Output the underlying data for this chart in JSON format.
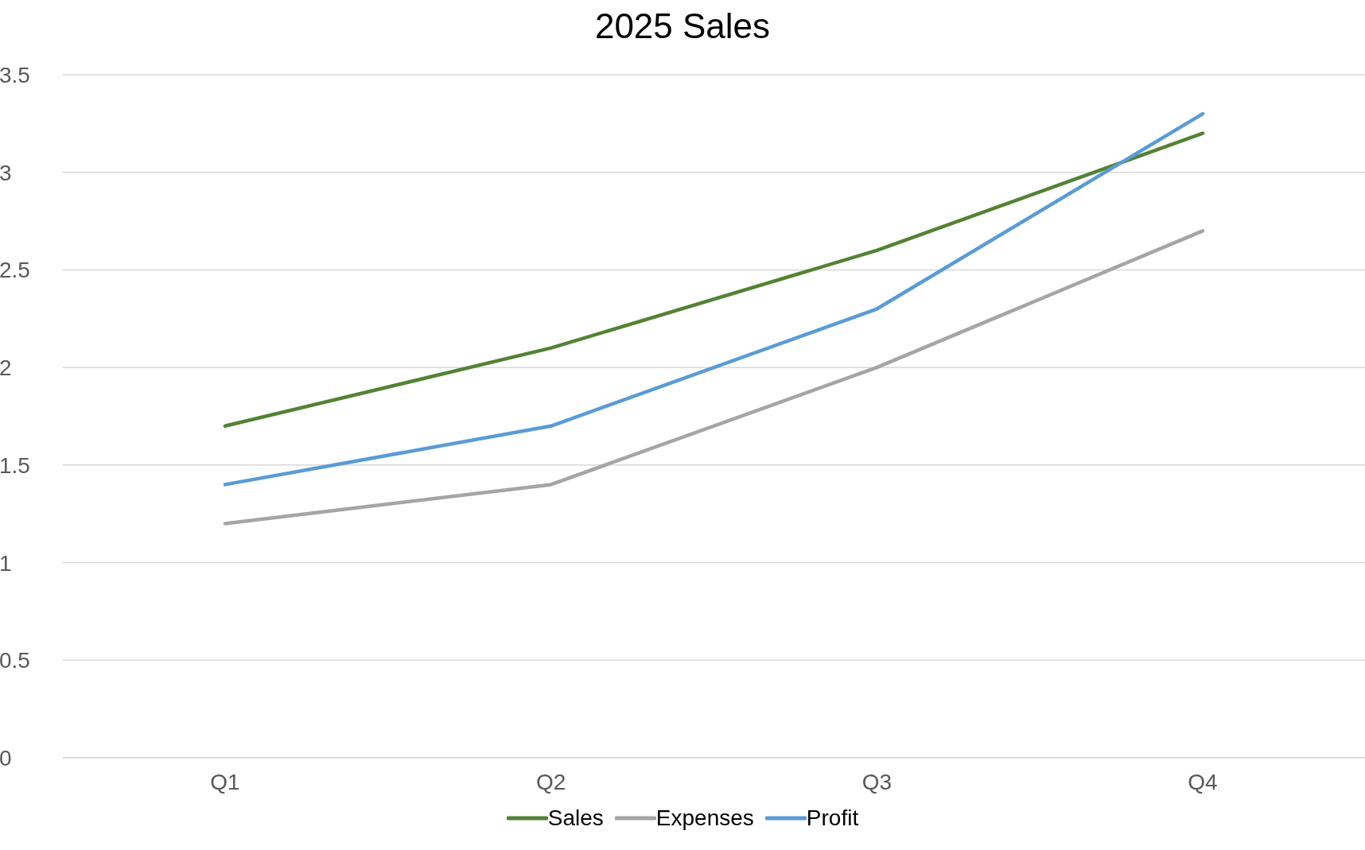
{
  "chart_data": {
    "type": "line",
    "title": "2025 Sales",
    "categories": [
      "Q1",
      "Q2",
      "Q3",
      "Q4"
    ],
    "series": [
      {
        "name": "Sales",
        "color": "#548235",
        "values": [
          1.7,
          2.1,
          2.6,
          3.2
        ]
      },
      {
        "name": "Expenses",
        "color": "#a5a5a5",
        "values": [
          1.2,
          1.4,
          2.0,
          2.7
        ]
      },
      {
        "name": "Profit",
        "color": "#5b9bd5",
        "values": [
          1.4,
          1.7,
          2.3,
          3.3
        ]
      }
    ],
    "ylim": [
      0,
      3.5
    ],
    "yticks": [
      0,
      0.5,
      1,
      1.5,
      2,
      2.5,
      3,
      3.5
    ],
    "grid": "y",
    "legend": "bottom",
    "marker": "none",
    "line_style": "solid"
  }
}
